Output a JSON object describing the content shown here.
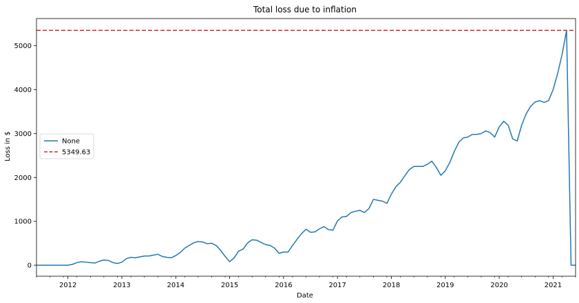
{
  "chart_data": {
    "type": "line",
    "title": "Total loss due to inflation",
    "xlabel": "Date",
    "ylabel": "Loss in $",
    "x_range": [
      "2011-06",
      "2021-06"
    ],
    "ylim": [
      -250,
      5620
    ],
    "x_ticks": [
      {
        "label": "2012",
        "x": "2012-01"
      },
      {
        "label": "2013",
        "x": "2013-01"
      },
      {
        "label": "2014",
        "x": "2014-01"
      },
      {
        "label": "2015",
        "x": "2015-01"
      },
      {
        "label": "2016",
        "x": "2016-01"
      },
      {
        "label": "2017",
        "x": "2017-01"
      },
      {
        "label": "2018",
        "x": "2018-01"
      },
      {
        "label": "2019",
        "x": "2019-01"
      },
      {
        "label": "2020",
        "x": "2020-01"
      },
      {
        "label": "2021",
        "x": "2021-01"
      }
    ],
    "y_ticks": [
      {
        "label": "0",
        "y": 0
      },
      {
        "label": "1000",
        "y": 1000
      },
      {
        "label": "2000",
        "y": 2000
      },
      {
        "label": "3000",
        "y": 3000
      },
      {
        "label": "4000",
        "y": 4000
      },
      {
        "label": "5000",
        "y": 5000
      }
    ],
    "grid": false,
    "legend_position": "center-left",
    "series": [
      {
        "name": "None",
        "style": "solid",
        "color": "#1f77b4",
        "x": [
          "2011-06",
          "2011-07",
          "2011-08",
          "2011-09",
          "2011-10",
          "2011-11",
          "2011-12",
          "2012-01",
          "2012-02",
          "2012-03",
          "2012-04",
          "2012-05",
          "2012-06",
          "2012-07",
          "2012-08",
          "2012-09",
          "2012-10",
          "2012-11",
          "2012-12",
          "2013-01",
          "2013-02",
          "2013-03",
          "2013-04",
          "2013-05",
          "2013-06",
          "2013-07",
          "2013-08",
          "2013-09",
          "2013-10",
          "2013-11",
          "2013-12",
          "2014-01",
          "2014-02",
          "2014-03",
          "2014-04",
          "2014-05",
          "2014-06",
          "2014-07",
          "2014-08",
          "2014-09",
          "2014-10",
          "2014-11",
          "2014-12",
          "2015-01",
          "2015-02",
          "2015-03",
          "2015-04",
          "2015-05",
          "2015-06",
          "2015-07",
          "2015-08",
          "2015-09",
          "2015-10",
          "2015-11",
          "2015-12",
          "2016-01",
          "2016-02",
          "2016-03",
          "2016-04",
          "2016-05",
          "2016-06",
          "2016-07",
          "2016-08",
          "2016-09",
          "2016-10",
          "2016-11",
          "2016-12",
          "2017-01",
          "2017-02",
          "2017-03",
          "2017-04",
          "2017-05",
          "2017-06",
          "2017-07",
          "2017-08",
          "2017-09",
          "2017-10",
          "2017-11",
          "2017-12",
          "2018-01",
          "2018-02",
          "2018-03",
          "2018-04",
          "2018-05",
          "2018-06",
          "2018-07",
          "2018-08",
          "2018-09",
          "2018-10",
          "2018-11",
          "2018-12",
          "2019-01",
          "2019-02",
          "2019-03",
          "2019-04",
          "2019-05",
          "2019-06",
          "2019-07",
          "2019-08",
          "2019-09",
          "2019-10",
          "2019-11",
          "2019-12",
          "2020-01",
          "2020-02",
          "2020-03",
          "2020-04",
          "2020-05",
          "2020-06",
          "2020-07",
          "2020-08",
          "2020-09",
          "2020-10",
          "2020-11",
          "2020-12",
          "2021-01",
          "2021-02",
          "2021-03",
          "2021-04",
          "2021-05",
          "2021-06"
        ],
        "y": [
          0,
          0,
          0,
          0,
          0,
          0,
          0,
          0,
          20,
          60,
          80,
          70,
          60,
          50,
          90,
          120,
          110,
          60,
          40,
          70,
          150,
          180,
          170,
          190,
          210,
          210,
          230,
          250,
          200,
          180,
          170,
          220,
          290,
          390,
          450,
          510,
          540,
          530,
          490,
          500,
          450,
          340,
          200,
          80,
          170,
          320,
          370,
          510,
          580,
          570,
          520,
          470,
          450,
          390,
          270,
          300,
          300,
          450,
          590,
          720,
          820,
          750,
          760,
          830,
          880,
          810,
          800,
          1010,
          1100,
          1110,
          1200,
          1230,
          1250,
          1200,
          1290,
          1500,
          1480,
          1460,
          1410,
          1620,
          1790,
          1890,
          2040,
          2180,
          2250,
          2250,
          2250,
          2300,
          2370,
          2230,
          2050,
          2150,
          2340,
          2590,
          2800,
          2900,
          2920,
          2980,
          2980,
          3000,
          3060,
          3020,
          2920,
          3150,
          3280,
          3190,
          2880,
          2830,
          3190,
          3450,
          3620,
          3720,
          3750,
          3710,
          3750,
          4000,
          4360,
          4800,
          5349.63,
          0,
          0
        ]
      },
      {
        "name": "5349.63",
        "style": "dashed",
        "color": "#d62728",
        "constant_y": 5349.63
      }
    ]
  }
}
